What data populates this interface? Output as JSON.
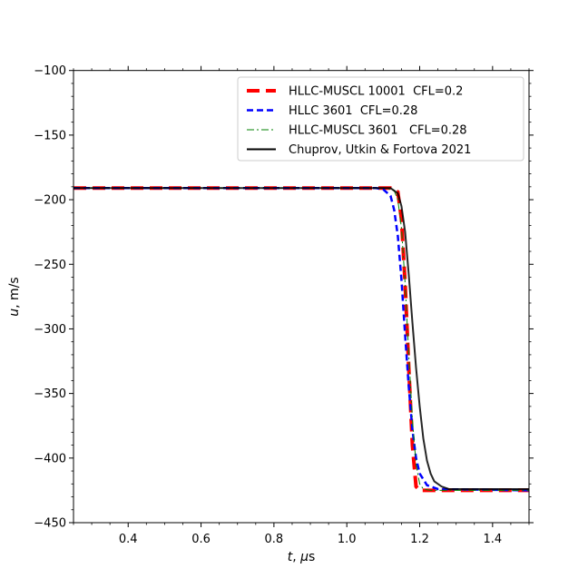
{
  "chart_data": {
    "type": "line",
    "xlabel": "t, μs",
    "ylabel": "u, m/s",
    "xlim": [
      0.25,
      1.5
    ],
    "ylim": [
      -450,
      -100
    ],
    "x_ticks": [
      0.4,
      0.6,
      0.8,
      1.0,
      1.2,
      1.4
    ],
    "y_ticks": [
      -100,
      -150,
      -200,
      -250,
      -300,
      -350,
      -400,
      -450
    ],
    "grid": false,
    "legend_position": "top-right",
    "series": [
      {
        "name": "HLLC-MUSCL 10001  CFL=0.2",
        "color": "#ff0000",
        "style": "dashed-thick",
        "x": [
          0.25,
          1.12,
          1.14,
          1.15,
          1.16,
          1.17,
          1.18,
          1.19,
          1.2,
          1.21,
          1.22,
          1.5
        ],
        "y": [
          -191,
          -191,
          -194,
          -215,
          -265,
          -330,
          -390,
          -422,
          -425,
          -425,
          -425,
          -425
        ]
      },
      {
        "name": "HLLC 3601  CFL=0.28",
        "color": "#0000ff",
        "style": "dashed",
        "x": [
          0.25,
          1.08,
          1.1,
          1.12,
          1.13,
          1.14,
          1.15,
          1.16,
          1.17,
          1.18,
          1.19,
          1.2,
          1.22,
          1.25,
          1.5
        ],
        "y": [
          -191,
          -191,
          -192,
          -197,
          -208,
          -228,
          -262,
          -305,
          -345,
          -378,
          -400,
          -412,
          -421,
          -424,
          -425
        ]
      },
      {
        "name": "HLLC-MUSCL 3601   CFL=0.28",
        "color": "#008000",
        "style": "dashdot",
        "x": [
          0.25,
          1.11,
          1.13,
          1.14,
          1.15,
          1.16,
          1.17,
          1.18,
          1.19,
          1.2,
          1.21,
          1.23,
          1.5
        ],
        "y": [
          -191,
          -191,
          -193,
          -200,
          -222,
          -265,
          -320,
          -370,
          -405,
          -420,
          -424,
          -425,
          -425
        ]
      },
      {
        "name": "Chuprov, Utkin & Fortova 2021",
        "color": "#000000",
        "style": "solid",
        "x": [
          0.25,
          1.12,
          1.14,
          1.15,
          1.16,
          1.17,
          1.18,
          1.19,
          1.2,
          1.21,
          1.22,
          1.23,
          1.24,
          1.26,
          1.28,
          1.5
        ],
        "y": [
          -191,
          -191,
          -195,
          -205,
          -225,
          -258,
          -295,
          -330,
          -360,
          -385,
          -402,
          -412,
          -418,
          -422,
          -424,
          -424
        ]
      }
    ]
  }
}
